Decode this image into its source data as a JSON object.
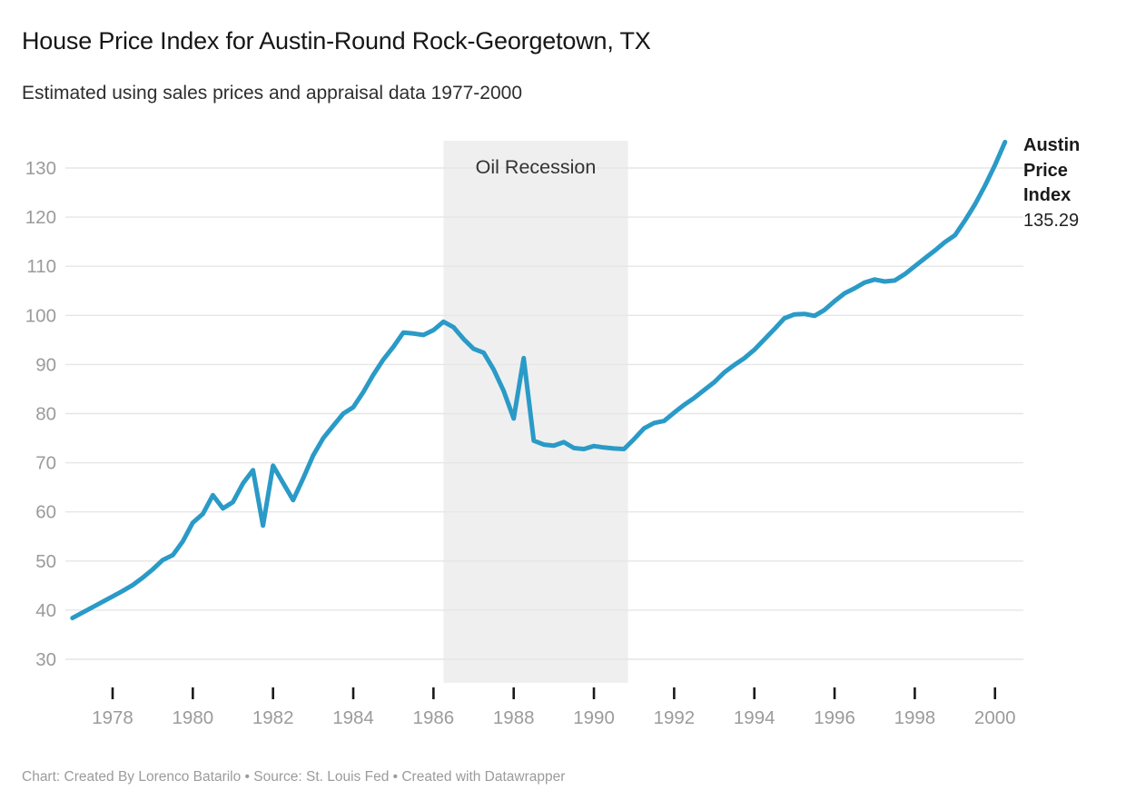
{
  "header": {
    "title": "House Price Index for Austin-Round Rock-Georgetown, TX",
    "subtitle": "Estimated using sales prices and appraisal data 1977-2000"
  },
  "footer": {
    "text": "Chart: Created By Lorenco Batarilo • Source: St. Louis Fed • Created with Datawrapper"
  },
  "colors": {
    "line": "#2a9ac7",
    "region": "#efefef",
    "grid": "#e6e6e6",
    "axis_text": "#9b9b9b",
    "tick": "#1a1a1a",
    "region_label_text": "#333333",
    "title_text": "#161616",
    "footer_text": "#9b9b9b"
  },
  "chart_data": {
    "type": "line",
    "title": "House Price Index for Austin-Round Rock-Georgetown, TX",
    "subtitle": "Estimated using sales prices and appraisal data 1977-2000",
    "xlabel": "",
    "ylabel": "",
    "grid": "horizontal",
    "legend_position": "none",
    "xlim": [
      1976.9,
      2000.95
    ],
    "ylim": [
      30,
      130
    ],
    "x_ticks": [
      1978,
      1980,
      1982,
      1984,
      1986,
      1988,
      1990,
      1992,
      1994,
      1996,
      1998,
      2000
    ],
    "y_ticks": [
      30,
      40,
      50,
      60,
      70,
      80,
      90,
      100,
      110,
      120,
      130
    ],
    "shaded_region": {
      "label": "Oil Recession",
      "x_start": 1986.25,
      "x_end": 1990.85
    },
    "end_label": {
      "text": "Austin Price Index",
      "value": "135.29"
    },
    "x": [
      1977,
      1977.25,
      1977.5,
      1977.75,
      1978,
      1978.25,
      1978.5,
      1978.75,
      1979,
      1979.25,
      1979.5,
      1979.75,
      1980,
      1980.25,
      1980.5,
      1980.75,
      1981,
      1981.25,
      1981.5,
      1981.75,
      1982,
      1982.25,
      1982.5,
      1982.75,
      1983,
      1983.25,
      1983.5,
      1983.75,
      1984,
      1984.25,
      1984.5,
      1984.75,
      1985,
      1985.25,
      1985.5,
      1985.75,
      1986,
      1986.25,
      1986.5,
      1986.75,
      1987,
      1987.25,
      1987.5,
      1987.75,
      1988,
      1988.25,
      1988.5,
      1988.75,
      1989,
      1989.25,
      1989.5,
      1989.75,
      1990,
      1990.25,
      1990.5,
      1990.75,
      1991,
      1991.25,
      1991.5,
      1991.75,
      1992,
      1992.25,
      1992.5,
      1992.75,
      1993,
      1993.25,
      1993.5,
      1993.75,
      1994,
      1994.25,
      1994.5,
      1994.75,
      1995,
      1995.25,
      1995.5,
      1995.75,
      1996,
      1996.25,
      1996.5,
      1996.75,
      1997,
      1997.25,
      1997.5,
      1997.75,
      1998,
      1998.25,
      1998.5,
      1998.75,
      1999,
      1999.25,
      1999.5,
      1999.75,
      2000,
      2000.25
    ],
    "series": [
      {
        "name": "Austin Price Index",
        "values": [
          38.4,
          39.5,
          40.6,
          41.7,
          42.8,
          43.9,
          45.1,
          46.6,
          48.3,
          50.2,
          51.2,
          54.0,
          57.8,
          59.6,
          63.4,
          60.7,
          62.0,
          65.8,
          68.5,
          57.2,
          69.4,
          65.9,
          62.4,
          66.8,
          71.5,
          75.0,
          77.5,
          80.0,
          81.3,
          84.4,
          87.9,
          91.0,
          93.6,
          96.5,
          96.3,
          96.0,
          97.0,
          98.7,
          97.6,
          95.2,
          93.2,
          92.4,
          89.0,
          84.6,
          79.0,
          91.3,
          74.5,
          73.7,
          73.5,
          74.2,
          73.0,
          72.8,
          73.4,
          73.1,
          72.9,
          72.8,
          74.8,
          77.0,
          78.1,
          78.5,
          80.2,
          81.8,
          83.2,
          84.8,
          86.4,
          88.4,
          89.9,
          91.3,
          93.0,
          95.1,
          97.2,
          99.4,
          100.2,
          100.3,
          99.9,
          101.1,
          102.9,
          104.5,
          105.5,
          106.7,
          107.3,
          106.9,
          107.1,
          108.4,
          110.0,
          111.6,
          113.2,
          114.9,
          116.3,
          119.3,
          122.6,
          126.4,
          130.6,
          135.29
        ]
      }
    ]
  }
}
